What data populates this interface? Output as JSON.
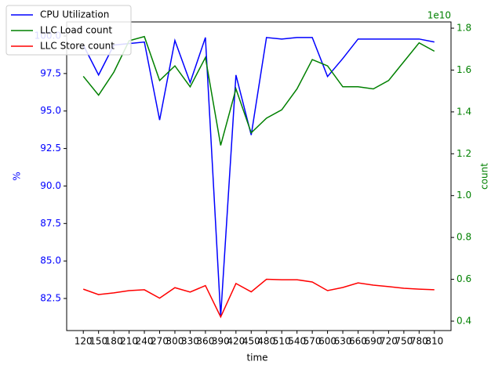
{
  "chart_data": {
    "type": "line",
    "x_label": "time",
    "y_label": "%",
    "y2_label": "count",
    "y2_offset_label": "1e10",
    "categories": [
      "120",
      "150",
      "180",
      "210",
      "240",
      "270",
      "300",
      "330",
      "360",
      "390",
      "420",
      "450",
      "480",
      "510",
      "540",
      "570",
      "600",
      "630",
      "660",
      "690",
      "720",
      "750",
      "780",
      "810"
    ],
    "series": [
      {
        "name": "CPU Utilization",
        "color": "#0000ff",
        "axis": "y",
        "values": [
          99.4,
          97.4,
          99.4,
          99.5,
          99.6,
          94.4,
          99.7,
          96.9,
          99.9,
          81.3,
          97.4,
          93.4,
          99.9,
          99.8,
          99.9,
          99.9,
          97.3,
          98.5,
          99.8,
          99.8,
          99.8,
          99.8,
          99.8,
          99.6
        ]
      },
      {
        "name": "LLC Load count",
        "color": "#008000",
        "axis": "y2",
        "values": [
          15700000000,
          14800000000,
          15900000000,
          17400000000,
          17600000000,
          15500000000,
          16200000000,
          15200000000,
          16600000000,
          12400000000,
          15100000000,
          13000000000,
          13700000000,
          14100000000,
          15100000000,
          16500000000,
          16200000000,
          15200000000,
          15200000000,
          15100000000,
          15500000000,
          16400000000,
          17300000000,
          16900000000
        ]
      },
      {
        "name": "LLC Store count",
        "color": "#ff0000",
        "axis": "y2",
        "values": [
          5530000000,
          5270000000,
          5350000000,
          5460000000,
          5500000000,
          5100000000,
          5600000000,
          5390000000,
          5700000000,
          4200000000,
          5800000000,
          5400000000,
          6000000000,
          5980000000,
          5980000000,
          5870000000,
          5460000000,
          5610000000,
          5830000000,
          5720000000,
          5650000000,
          5570000000,
          5530000000,
          5500000000
        ]
      }
    ],
    "ylim": [
      80.36,
      100.94
    ],
    "yticks": [
      82.5,
      {
        "value": 85,
        "label": "85.0"
      },
      87.5,
      {
        "value": 90,
        "label": "90.0"
      },
      92.5,
      {
        "value": 95,
        "label": "95.0"
      },
      97.5,
      {
        "value": 100,
        "label": "100.0"
      }
    ],
    "y2lim": [
      3550000000,
      18300000000
    ],
    "y2ticks": [
      {
        "value": 4000000000,
        "label": "0.4"
      },
      {
        "value": 6000000000,
        "label": "0.6"
      },
      {
        "value": 8000000000,
        "label": "0.8"
      },
      {
        "value": 10000000000,
        "label": "1.0"
      },
      {
        "value": 12000000000,
        "label": "1.2"
      },
      {
        "value": 14000000000,
        "label": "1.4"
      },
      {
        "value": 16000000000,
        "label": "1.6"
      },
      {
        "value": 18000000000,
        "label": "1.8"
      }
    ],
    "y_color": "#0000ff",
    "y2_color": "#008000",
    "legend": "upper left",
    "grid": false
  }
}
